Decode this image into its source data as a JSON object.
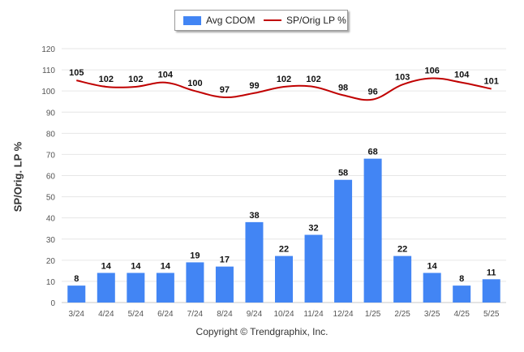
{
  "chart_data": {
    "type": "bar",
    "categories": [
      "3/24",
      "4/24",
      "5/24",
      "6/24",
      "7/24",
      "8/24",
      "9/24",
      "10/24",
      "11/24",
      "12/24",
      "1/25",
      "2/25",
      "3/25",
      "4/25",
      "5/25"
    ],
    "series": [
      {
        "name": "Avg CDOM",
        "kind": "bar",
        "color": "#4285f4",
        "values": [
          8,
          14,
          14,
          14,
          19,
          17,
          38,
          22,
          32,
          58,
          68,
          22,
          14,
          8,
          11
        ]
      },
      {
        "name": "SP/Orig LP %",
        "kind": "line",
        "color": "#c00000",
        "values": [
          105,
          102,
          102,
          104,
          100,
          97,
          99,
          102,
          102,
          98,
          96,
          103,
          106,
          104,
          101
        ]
      }
    ],
    "ylabel": "SP/Orig. LP %",
    "ylim": [
      0,
      120
    ],
    "yticks": [
      0,
      10,
      20,
      30,
      40,
      50,
      60,
      70,
      80,
      90,
      100,
      110,
      120
    ],
    "grid": true,
    "legend": "top-center"
  },
  "footer": {
    "copyright": "Copyright © Trendgraphix, Inc."
  }
}
